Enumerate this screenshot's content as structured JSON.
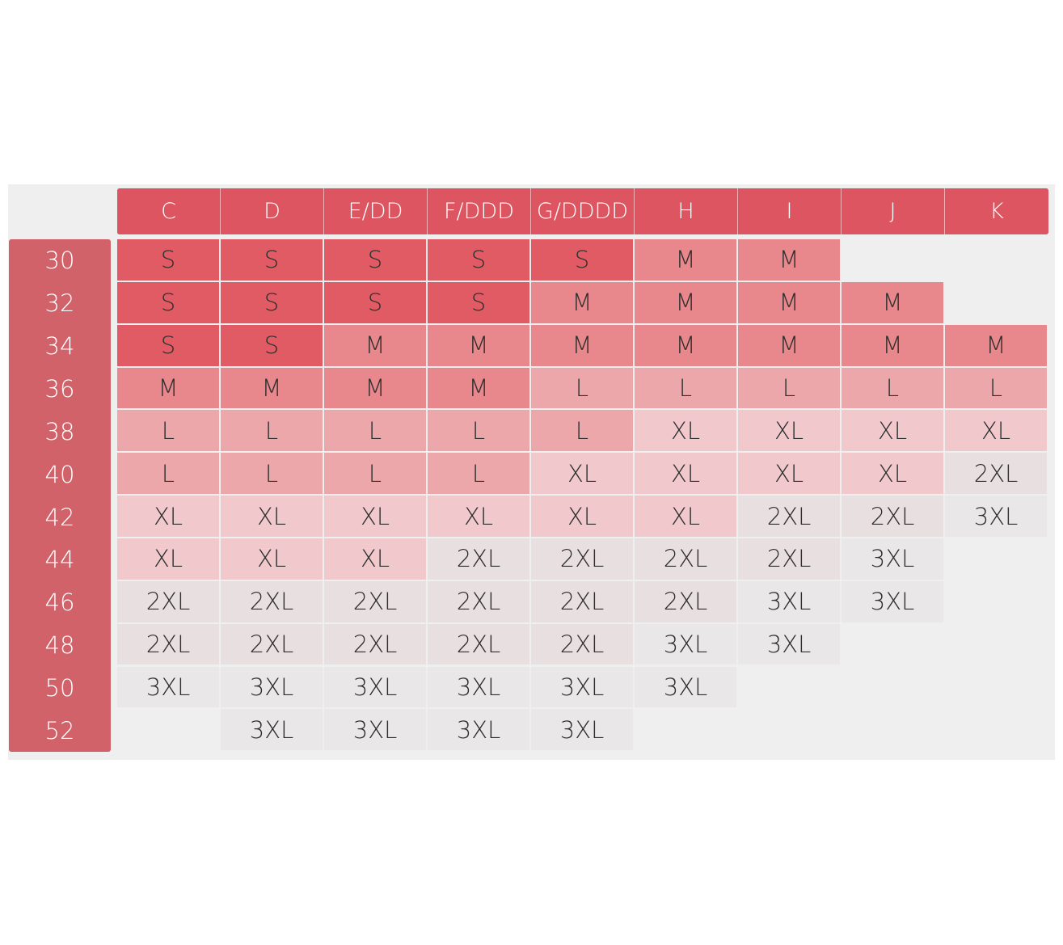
{
  "table": {
    "columns": [
      "C",
      "D",
      "E/DD",
      "F/DDD",
      "G/DDDD",
      "H",
      "I",
      "J",
      "K"
    ],
    "row_labels": [
      "30",
      "32",
      "34",
      "36",
      "38",
      "40",
      "42",
      "44",
      "46",
      "48",
      "50",
      "52"
    ],
    "rows": [
      [
        "S",
        "S",
        "S",
        "S",
        "S",
        "M",
        "M",
        null,
        null
      ],
      [
        "S",
        "S",
        "S",
        "S",
        "M",
        "M",
        "M",
        "M",
        null
      ],
      [
        "S",
        "S",
        "M",
        "M",
        "M",
        "M",
        "M",
        "M",
        "M"
      ],
      [
        "M",
        "M",
        "M",
        "M",
        "L",
        "L",
        "L",
        "L",
        "L"
      ],
      [
        "L",
        "L",
        "L",
        "L",
        "L",
        "XL",
        "XL",
        "XL",
        "XL"
      ],
      [
        "L",
        "L",
        "L",
        "L",
        "XL",
        "XL",
        "XL",
        "XL",
        "2XL"
      ],
      [
        "XL",
        "XL",
        "XL",
        "XL",
        "XL",
        "XL",
        "2XL",
        "2XL",
        "3XL"
      ],
      [
        "XL",
        "XL",
        "XL",
        "2XL",
        "2XL",
        "2XL",
        "2XL",
        "3XL",
        null
      ],
      [
        "2XL",
        "2XL",
        "2XL",
        "2XL",
        "2XL",
        "2XL",
        "3XL",
        "3XL",
        null
      ],
      [
        "2XL",
        "2XL",
        "2XL",
        "2XL",
        "2XL",
        "3XL",
        "3XL",
        null,
        null
      ],
      [
        "3XL",
        "3XL",
        "3XL",
        "3XL",
        "3XL",
        "3XL",
        null,
        null,
        null
      ],
      [
        null,
        "3XL",
        "3XL",
        "3XL",
        "3XL",
        null,
        null,
        null,
        null
      ]
    ],
    "size_colors": {
      "S": "#e05b64",
      "M": "#e8878c",
      "L": "#eca7ab",
      "XL": "#f1c9cc",
      "2XL": "#e8dfe1",
      "3XL": "#e9e7e8"
    }
  }
}
